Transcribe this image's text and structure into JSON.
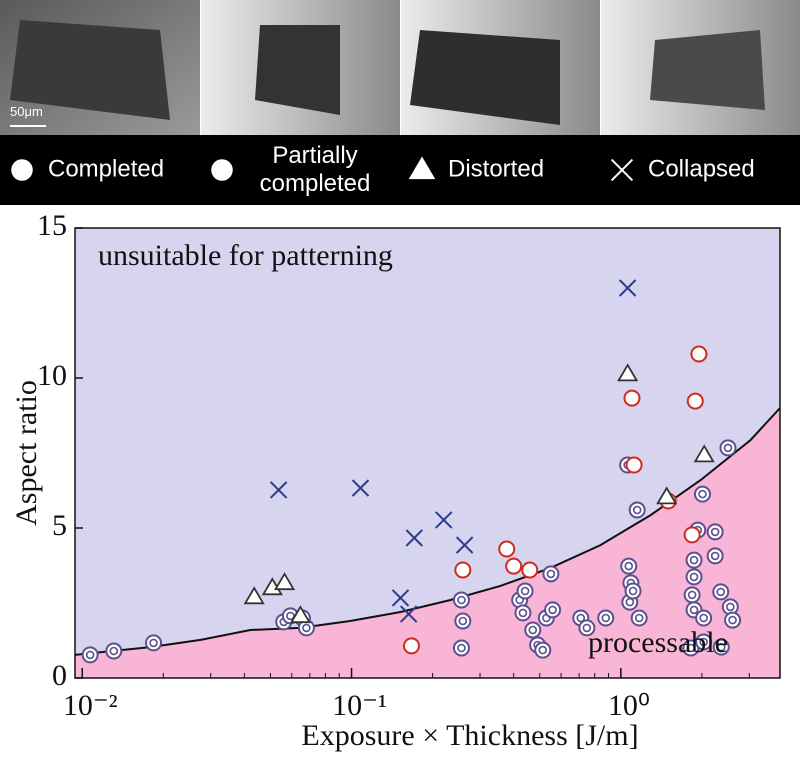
{
  "images": {
    "scale_bar": "50μm"
  },
  "chart_data": {
    "type": "scatter",
    "xlabel": "Exposure × Thickness [J/m]",
    "ylabel": "Aspect ratio",
    "region_labels": [
      "unsuitable for patterning",
      "processable"
    ],
    "region_colors": [
      "#d6d4ef",
      "#f9b5d5"
    ],
    "xscale": "log",
    "xlim": [
      0.0094,
      3.9
    ],
    "xticks": [
      {
        "value": 0.01,
        "label": "10⁻²"
      },
      {
        "value": 0.1,
        "label": "10⁻¹"
      },
      {
        "value": 1,
        "label": "10⁰"
      }
    ],
    "ylim": [
      0,
      15
    ],
    "yticks": [
      0,
      5,
      10,
      15
    ],
    "boundary": {
      "x": [
        0.0094,
        0.0179,
        0.0275,
        0.0421,
        0.0645,
        0.0988,
        0.152,
        0.233,
        0.357,
        0.548,
        0.84,
        1.29,
        1.98,
        3.03,
        3.9
      ],
      "y": [
        0.77,
        1.03,
        1.27,
        1.6,
        1.67,
        1.9,
        2.2,
        2.6,
        3.07,
        3.67,
        4.43,
        5.43,
        6.6,
        7.93,
        9.0
      ]
    },
    "series": [
      {
        "name": "Completed",
        "color": "#5b4f8f",
        "marker": "double-circle",
        "x": [
          0.0107,
          0.0131,
          0.0184,
          0.056,
          0.0593,
          0.0657,
          0.068,
          0.256,
          0.259,
          0.256,
          0.421,
          0.433,
          0.441,
          0.471,
          0.491,
          0.513,
          0.529,
          0.558,
          0.55,
          0.71,
          0.748,
          0.879,
          1.06,
          1.07,
          1.09,
          1.08,
          1.11,
          1.15,
          1.17,
          1.84,
          1.87,
          1.87,
          1.87,
          1.82,
          1.93,
          2.01,
          2.03,
          2.03,
          2.24,
          2.24,
          2.35,
          2.36,
          2.5,
          2.55,
          2.6
        ],
        "y": [
          0.77,
          0.9,
          1.17,
          1.87,
          2.07,
          2.0,
          1.67,
          2.6,
          1.9,
          1.0,
          2.6,
          2.17,
          2.9,
          1.6,
          1.1,
          0.93,
          2.0,
          2.27,
          3.47,
          2.0,
          1.67,
          2.0,
          7.1,
          3.73,
          3.17,
          2.53,
          2.9,
          5.6,
          2.0,
          2.77,
          3.93,
          3.37,
          2.27,
          1.0,
          4.93,
          6.13,
          2.0,
          1.2,
          4.87,
          4.07,
          2.87,
          1.03,
          7.67,
          2.37,
          1.93
        ]
      },
      {
        "name": "Partially completed",
        "color": "#d02a1a",
        "marker": "circle",
        "x": [
          0.167,
          0.259,
          0.377,
          0.4,
          0.459,
          1.1,
          1.12,
          1.5,
          1.84,
          1.95,
          1.89
        ],
        "y": [
          1.07,
          3.6,
          4.3,
          3.73,
          3.6,
          9.33,
          7.1,
          5.9,
          4.77,
          10.8,
          9.23
        ]
      },
      {
        "name": "Distorted",
        "color": "#333333",
        "marker": "triangle",
        "x": [
          0.0435,
          0.0508,
          0.0564,
          0.0646,
          1.06,
          1.48,
          2.04
        ],
        "y": [
          2.7,
          3.0,
          3.17,
          2.07,
          10.13,
          6.03,
          7.43
        ]
      },
      {
        "name": "Collapsed",
        "color": "#2b3a8c",
        "marker": "cross",
        "x": [
          0.0536,
          0.108,
          0.171,
          0.22,
          0.263,
          0.152,
          0.163,
          1.06
        ],
        "y": [
          6.27,
          6.33,
          4.67,
          5.27,
          4.43,
          2.67,
          2.13,
          13.0
        ]
      }
    ]
  }
}
